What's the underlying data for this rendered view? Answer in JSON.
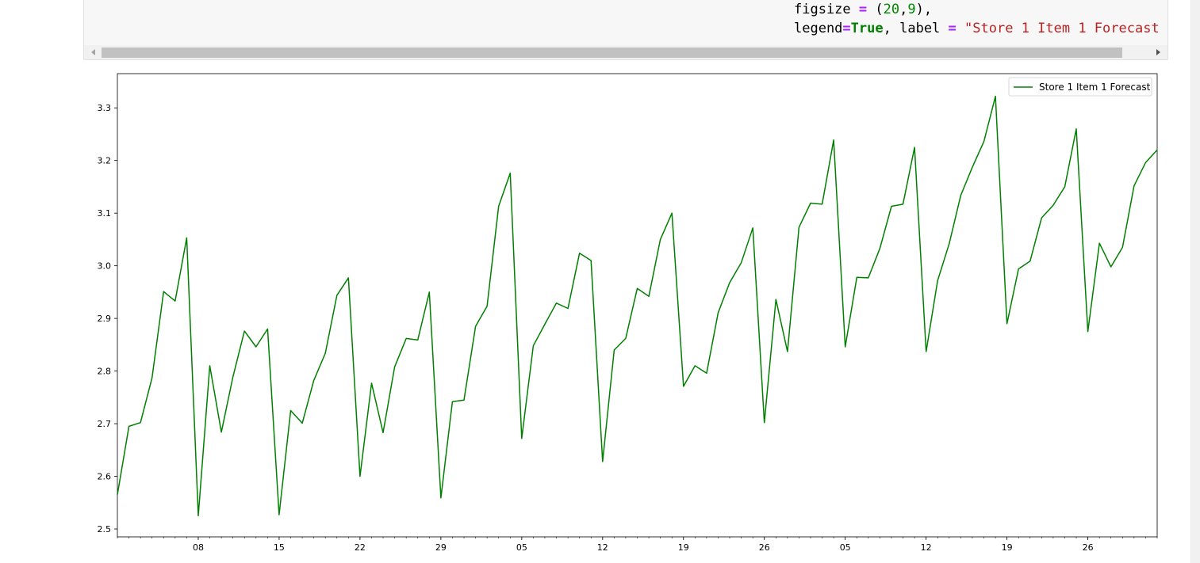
{
  "code_cell": {
    "line1": {
      "name": "figsize",
      "op": "=",
      "open": "(",
      "n1": "20",
      "comma": ",",
      "n2": "9",
      "close": "),"
    },
    "line2": {
      "param1": "legend",
      "op1": "=",
      "value1": "True",
      "sep": ", ",
      "param2": "label",
      "op2": "=",
      "string": "\"Store 1 Item 1 Forecast"
    }
  },
  "chart_data": {
    "type": "line",
    "title": "",
    "xlabel": "",
    "ylabel": "",
    "ylim": [
      2.485,
      3.365
    ],
    "yticks": [
      2.5,
      2.6,
      2.7,
      2.8,
      2.9,
      3.0,
      3.1,
      3.2,
      3.3
    ],
    "ytick_labels": [
      "2.5",
      "2.6",
      "2.7",
      "2.8",
      "2.9",
      "3.0",
      "3.1",
      "3.2",
      "3.3"
    ],
    "xlim": [
      0,
      90
    ],
    "xticks": [
      7,
      14,
      21,
      28,
      35,
      42,
      49,
      56,
      63,
      70,
      77,
      84
    ],
    "xtick_labels": [
      "08",
      "15",
      "22",
      "29",
      "05",
      "12",
      "19",
      "26",
      "05",
      "12",
      "19",
      "26"
    ],
    "legend_position": "top-right",
    "grid": false,
    "series": [
      {
        "name": "Store 1 Item 1 Forecast",
        "color": "#008000",
        "x": [
          0,
          1,
          2,
          3,
          4,
          5,
          6,
          7,
          8,
          9,
          10,
          11,
          12,
          13,
          14,
          15,
          16,
          17,
          18,
          19,
          20,
          21,
          22,
          23,
          24,
          25,
          26,
          27,
          28,
          29,
          30,
          31,
          32,
          33,
          34,
          35,
          36,
          37,
          38,
          39,
          40,
          41,
          42,
          43,
          44,
          45,
          46,
          47,
          48,
          49,
          50,
          51,
          52,
          53,
          54,
          55,
          56,
          57,
          58,
          59,
          60,
          61,
          62,
          63,
          64,
          65,
          66,
          67,
          68,
          69,
          70,
          71,
          72,
          73,
          74,
          75,
          76,
          77,
          78,
          79,
          80,
          81,
          82,
          83,
          84,
          85,
          86,
          87,
          88,
          89,
          90
        ],
        "values": [
          2.565,
          2.695,
          2.702,
          2.787,
          2.951,
          2.933,
          3.053,
          2.525,
          2.81,
          2.684,
          2.789,
          2.876,
          2.846,
          2.88,
          2.527,
          2.725,
          2.701,
          2.782,
          2.834,
          2.944,
          2.977,
          2.6,
          2.777,
          2.683,
          2.808,
          2.862,
          2.859,
          2.95,
          2.559,
          2.742,
          2.745,
          2.885,
          2.923,
          3.113,
          3.176,
          2.672,
          2.848,
          2.889,
          2.929,
          2.919,
          3.024,
          3.01,
          2.628,
          2.84,
          2.862,
          2.957,
          2.942,
          3.05,
          3.1,
          2.771,
          2.81,
          2.796,
          2.911,
          2.968,
          3.006,
          3.072,
          2.702,
          2.936,
          2.837,
          3.073,
          3.119,
          3.117,
          3.239,
          2.846,
          2.978,
          2.977,
          3.033,
          3.113,
          3.117,
          3.225,
          2.837,
          2.972,
          3.042,
          3.134,
          3.187,
          3.236,
          3.322,
          2.89,
          2.994,
          3.009,
          3.091,
          3.115,
          3.15,
          3.26,
          2.875,
          3.043,
          2.998,
          3.035,
          3.152,
          3.196,
          3.22
        ]
      }
    ]
  }
}
